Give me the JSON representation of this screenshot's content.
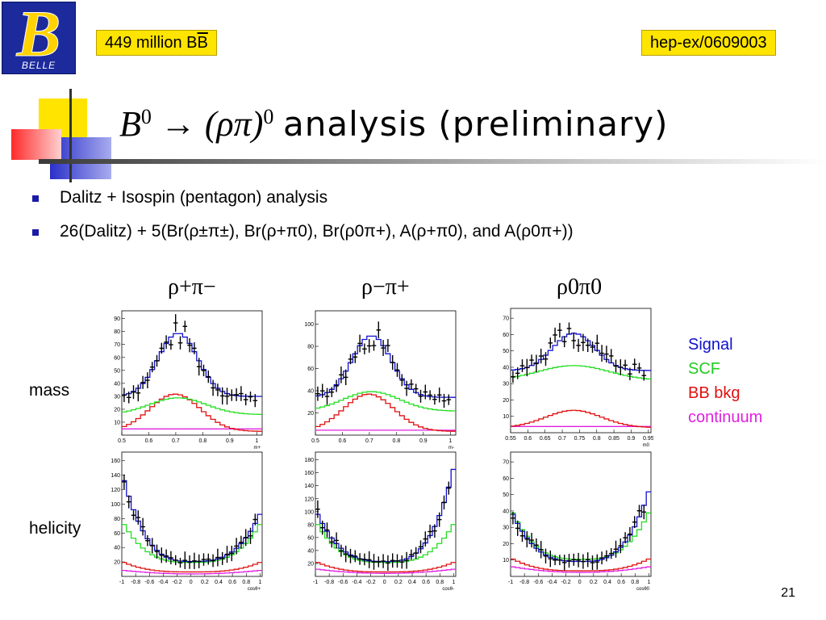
{
  "header": {
    "logo_text": "BELLE",
    "events_label": "449 million B",
    "events_label_bar": "B",
    "arxiv_id": "hep-ex/0609003"
  },
  "title": {
    "formula_b": "B",
    "formula_sup1": "0",
    "formula_arrow": " → (ρπ)",
    "formula_sup2": "0",
    "text": "analysis (preliminary)"
  },
  "bullets": [
    {
      "text": "Dalitz + Isospin (pentagon) analysis"
    },
    {
      "text": "26(Dalitz) + 5(Br(ρ±π±), Br(ρ+π0), Br(ρ0π+), A(ρ+π0), and A(ρ0π+))"
    }
  ],
  "channels": [
    {
      "label": "ρ+π−"
    },
    {
      "label": "ρ−π+"
    },
    {
      "label": "ρ0π0"
    }
  ],
  "row_labels": {
    "mass": "mass",
    "helicity": "helicity"
  },
  "legend": {
    "signal": "Signal",
    "scf": "SCF",
    "bbkg": "BB bkg",
    "continuum": "continuum"
  },
  "colors": {
    "signal": "#1010d0",
    "scf": "#22dd22",
    "bbkg": "#e01010",
    "continuum": "#e020e0",
    "accent_yellow": "#ffe400",
    "bullet_blue": "#1a1aa8"
  },
  "page_number": "21",
  "plots": [
    {
      "id": "mass-rho-plus-pi-minus",
      "xlabel": "m+",
      "xticks": [
        "0.5",
        "0.6",
        "0.7",
        "0.8",
        "0.9",
        "1"
      ],
      "yticks": [
        "10",
        "20",
        "30",
        "40",
        "50",
        "60",
        "70",
        "80",
        "90"
      ]
    },
    {
      "id": "mass-rho-minus-pi-plus",
      "xlabel": "m-",
      "xticks": [
        "0.5",
        "0.6",
        "0.7",
        "0.8",
        "0.9",
        "1"
      ],
      "yticks": [
        "20",
        "40",
        "60",
        "80",
        "100"
      ]
    },
    {
      "id": "mass-rho0-pi0",
      "xlabel": "m0",
      "xticks": [
        "0.55",
        "0.6",
        "0.65",
        "0.7",
        "0.75",
        "0.8",
        "0.85",
        "0.9",
        "0.95"
      ],
      "yticks": [
        "10",
        "20",
        "30",
        "40",
        "50",
        "60",
        "70"
      ]
    },
    {
      "id": "helicity-rho-plus-pi-minus",
      "xlabel": "cosθ+",
      "xticks": [
        "-1",
        "-0.8",
        "-0.6",
        "-0.4",
        "-0.2",
        "0",
        "0.2",
        "0.4",
        "0.6",
        "0.8",
        "1"
      ],
      "yticks": [
        "20",
        "40",
        "60",
        "80",
        "100",
        "120",
        "140",
        "160"
      ]
    },
    {
      "id": "helicity-rho-minus-pi-plus",
      "xlabel": "cosθ-",
      "xticks": [
        "-1",
        "-0.8",
        "-0.6",
        "-0.4",
        "-0.2",
        "0",
        "0.2",
        "0.4",
        "0.6",
        "0.8",
        "1"
      ],
      "yticks": [
        "20",
        "40",
        "60",
        "80",
        "100",
        "120",
        "140",
        "160",
        "180"
      ]
    },
    {
      "id": "helicity-rho0-pi0",
      "xlabel": "cosθ0",
      "xticks": [
        "-1",
        "-0.8",
        "-0.6",
        "-0.4",
        "-0.2",
        "0",
        "0.2",
        "0.4",
        "0.6",
        "0.8",
        "1"
      ],
      "yticks": [
        "10",
        "20",
        "30",
        "40",
        "50",
        "60",
        "70"
      ]
    }
  ]
}
